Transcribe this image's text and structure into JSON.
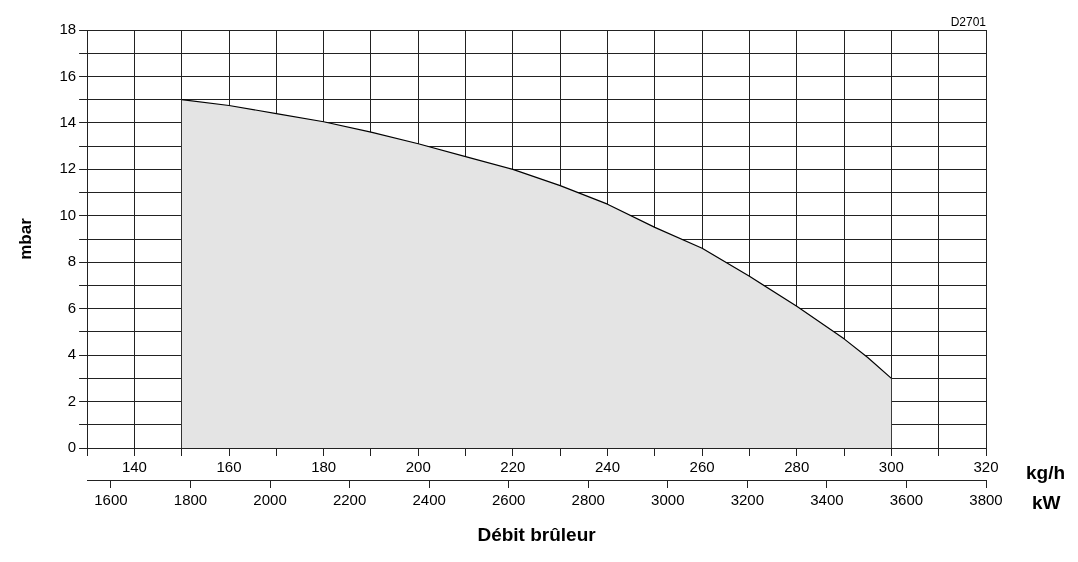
{
  "chart_data": {
    "type": "area",
    "xlabel": "kg/h",
    "x2label": "kW",
    "ylabel": "mbar",
    "annotations": [
      "D2701",
      "Débit brûleur"
    ],
    "x": [
      150,
      160,
      170,
      180,
      190,
      200,
      210,
      220,
      230,
      240,
      250,
      260,
      270,
      280,
      290,
      295,
      300
    ],
    "series": [
      {
        "color": "#e4e4e4",
        "values": [
          15,
          14.75,
          14.4,
          14.05,
          13.6,
          13.1,
          12.55,
          12.0,
          11.3,
          10.5,
          9.5,
          8.6,
          7.4,
          6.1,
          4.7,
          3.9,
          3
        ]
      }
    ],
    "xlim": [
      130,
      320
    ],
    "xticks": [
      {
        "value": 130,
        "label": null
      },
      140,
      {
        "value": 150,
        "label": null
      },
      160,
      {
        "value": 170,
        "label": null
      },
      180,
      {
        "value": 190,
        "label": null
      },
      200,
      {
        "value": 210,
        "label": null
      },
      220,
      {
        "value": 230,
        "label": null
      },
      240,
      {
        "value": 250,
        "label": null
      },
      260,
      {
        "value": 270,
        "label": null
      },
      280,
      {
        "value": 290,
        "label": null
      },
      300,
      {
        "value": 310,
        "label": null
      },
      320
    ],
    "x2lim": [
      1540,
      3800
    ],
    "x2ticks": [
      1600,
      1800,
      2000,
      2200,
      2400,
      2600,
      2800,
      3000,
      3200,
      3400,
      3600,
      3800
    ],
    "ylim": [
      0,
      18
    ],
    "yticks": [
      0,
      {
        "value": 1,
        "label": null
      },
      2,
      {
        "value": 3,
        "label": null
      },
      4,
      {
        "value": 5,
        "label": null
      },
      6,
      {
        "value": 7,
        "label": null
      },
      8,
      {
        "value": 9,
        "label": null
      },
      10,
      {
        "value": 11,
        "label": null
      },
      12,
      {
        "value": 13,
        "label": null
      },
      14,
      {
        "value": 15,
        "label": null
      },
      16,
      {
        "value": 17,
        "label": null
      },
      18
    ],
    "grid": true,
    "legend": false,
    "marker": "none",
    "line_style": "solid"
  }
}
